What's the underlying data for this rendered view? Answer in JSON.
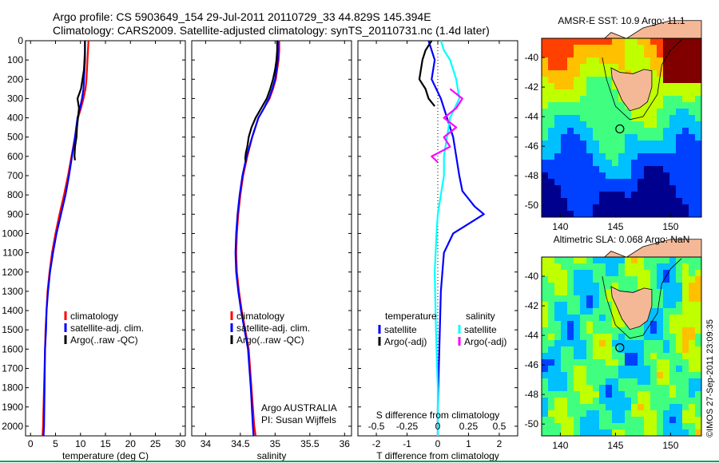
{
  "header": {
    "line1": "Argo profile: CS 5903649_154 29-Jul-2011 20110729_33 44.829S 145.394E",
    "line2": "Climatology: CARS2009. Satellite-adjusted climatology: synTS_20110731.nc (1.4d later)"
  },
  "colors": {
    "climatology": "#ff0000",
    "satellite": "#0000ff",
    "argo": "#000000",
    "salinity_satellite": "#00ffff",
    "salinity_argo": "#ff00ff",
    "land": "#f5b896"
  },
  "timestamp": "©IMOS 27-Sep-2011 23:09:35",
  "depth_ticks": [
    "0",
    "100",
    "200",
    "300",
    "400",
    "500",
    "600",
    "700",
    "800",
    "900",
    "1000",
    "1100",
    "1200",
    "1300",
    "1400",
    "1500",
    "1600",
    "1700",
    "1800",
    "1900",
    "2000"
  ],
  "chart_data": [
    {
      "type": "line",
      "id": "temperature",
      "xlabel": "temperature (deg C)",
      "xlim": [
        -1,
        31
      ],
      "ylim": [
        0,
        2050
      ],
      "y_inverted": true,
      "xticks": [
        "0",
        "5",
        "10",
        "15",
        "20",
        "25",
        "30"
      ],
      "xtick_values": [
        0,
        5,
        10,
        15,
        20,
        25,
        30
      ],
      "legend_position": "center-right",
      "legend": [
        "climatology",
        "satellite-adj. clim.",
        "Argo(..raw -QC)"
      ],
      "series": [
        {
          "name": "climatology",
          "color": "#ff0000",
          "x": [
            11.6,
            11.5,
            11.4,
            11.3,
            11.2,
            11.0,
            10.6,
            10.1,
            9.5,
            8.9,
            8.2,
            7.5,
            6.7,
            5.8,
            5.0,
            4.3,
            3.8,
            3.4,
            3.2,
            3.0,
            2.9,
            2.7,
            2.5,
            2.4
          ],
          "y": [
            0,
            50,
            100,
            150,
            200,
            250,
            300,
            350,
            400,
            500,
            600,
            700,
            800,
            900,
            1000,
            1100,
            1200,
            1300,
            1400,
            1500,
            1600,
            1800,
            2000,
            2050
          ]
        },
        {
          "name": "satellite-adj. clim.",
          "color": "#0000ff",
          "x": [
            10.9,
            10.9,
            10.9,
            10.8,
            10.7,
            10.6,
            10.3,
            9.9,
            9.4,
            8.9,
            8.3,
            7.7,
            7.0,
            6.1,
            5.2,
            4.5,
            3.9,
            3.5,
            3.2,
            3.1,
            2.9,
            2.8,
            2.7,
            2.6
          ],
          "y": [
            0,
            50,
            100,
            150,
            200,
            250,
            300,
            350,
            400,
            500,
            600,
            700,
            800,
            900,
            1000,
            1100,
            1200,
            1300,
            1400,
            1500,
            1600,
            1800,
            2000,
            2050
          ]
        },
        {
          "name": "Argo(..raw -QC)",
          "color": "#000000",
          "x": [
            10.9,
            10.9,
            10.8,
            10.7,
            10.4,
            10.1,
            9.4,
            9.7,
            9.5,
            9.3,
            9.2,
            8.9,
            8.8,
            8.9
          ],
          "y": [
            0,
            50,
            100,
            150,
            200,
            250,
            300,
            350,
            400,
            450,
            500,
            550,
            600,
            620
          ]
        }
      ]
    },
    {
      "type": "line",
      "id": "salinity",
      "xlabel": "salinity",
      "xlim": [
        33.8,
        36.1
      ],
      "ylim": [
        0,
        2050
      ],
      "y_inverted": true,
      "xticks": [
        "34",
        "34.5",
        "35",
        "35.5",
        "36"
      ],
      "xtick_values": [
        34,
        34.5,
        35,
        35.5,
        36
      ],
      "legend_position": "center-right",
      "legend": [
        "climatology",
        "satellite-adj. clim.",
        "Argo(..raw -QC)"
      ],
      "annotation": [
        "Argo AUSTRALIA",
        "PI: Susan Wijffels"
      ],
      "series": [
        {
          "name": "climatology",
          "color": "#ff0000",
          "x": [
            35.06,
            35.06,
            35.05,
            35.03,
            35.01,
            34.97,
            34.92,
            34.84,
            34.76,
            34.67,
            34.6,
            34.54,
            34.5,
            34.47,
            34.45,
            34.44,
            34.45,
            34.48,
            34.52,
            34.57,
            34.62,
            34.66,
            34.7,
            34.72
          ],
          "y": [
            0,
            50,
            100,
            150,
            200,
            250,
            300,
            350,
            400,
            500,
            600,
            700,
            800,
            900,
            1000,
            1100,
            1200,
            1300,
            1400,
            1500,
            1600,
            1800,
            2000,
            2050
          ]
        },
        {
          "name": "satellite-adj. clim.",
          "color": "#0000ff",
          "x": [
            35.04,
            35.04,
            35.04,
            35.02,
            35.0,
            34.96,
            34.91,
            34.84,
            34.76,
            34.67,
            34.59,
            34.53,
            34.49,
            34.46,
            34.44,
            34.43,
            34.44,
            34.47,
            34.51,
            34.56,
            34.61,
            34.65,
            34.68,
            34.69
          ],
          "y": [
            0,
            50,
            100,
            150,
            200,
            250,
            300,
            350,
            400,
            500,
            600,
            700,
            800,
            900,
            1000,
            1100,
            1200,
            1300,
            1400,
            1500,
            1600,
            1800,
            2000,
            2050
          ]
        },
        {
          "name": "Argo(..raw -QC)",
          "color": "#000000",
          "x": [
            35.03,
            35.03,
            35.02,
            35.0,
            34.97,
            34.93,
            34.88,
            34.8,
            34.72,
            34.66,
            34.62,
            34.6,
            34.58,
            34.57,
            34.58
          ],
          "y": [
            0,
            50,
            100,
            150,
            200,
            250,
            300,
            350,
            400,
            450,
            500,
            550,
            580,
            610,
            630
          ]
        }
      ]
    },
    {
      "type": "line",
      "id": "difference",
      "xlabel": "T difference from climatology",
      "xlabel_top": "S difference from climatology",
      "xlim": [
        -2.6,
        2.6
      ],
      "ylim": [
        0,
        2050
      ],
      "y_inverted": true,
      "xticks": [
        "-2",
        "-1",
        "0",
        "1",
        "2"
      ],
      "xtick_values": [
        -2,
        -1,
        0,
        1,
        2
      ],
      "sticks": [
        "-0.5",
        "-0.25",
        "0",
        "0.25",
        "0.5"
      ],
      "stick_values": [
        -0.5,
        -0.25,
        0,
        0.25,
        0.5
      ],
      "legend_position": "center",
      "legend_headers": [
        "temperature",
        "salinity"
      ],
      "legend_left": [
        "satellite",
        "Argo(-adj)"
      ],
      "legend_right": [
        "satellite",
        "Argo(-adj)"
      ],
      "series": [
        {
          "name": "satellite",
          "color": "#0000ff",
          "x": [
            -0.3,
            -0.2,
            -0.1,
            -0.2,
            0.1,
            0.3,
            0.5,
            0.6,
            0.7,
            0.8,
            1.0,
            1.2,
            1.5,
            1.0,
            0.5,
            0.2,
            0.1,
            0.05,
            0.0,
            0.0
          ],
          "y": [
            0,
            50,
            100,
            200,
            300,
            400,
            500,
            600,
            700,
            780,
            820,
            860,
            900,
            950,
            1000,
            1100,
            1300,
            1600,
            1900,
            2050
          ]
        },
        {
          "name": "Argo(-adj)",
          "color": "#000000",
          "x": [
            -0.2,
            -0.4,
            -0.5,
            -0.6,
            -0.4,
            -0.3,
            -0.1
          ],
          "y": [
            0,
            50,
            100,
            200,
            250,
            300,
            340
          ]
        },
        {
          "name": "satellite",
          "color": "#00ffff",
          "x": [
            0.05,
            0.1,
            0.2,
            0.3,
            0.35,
            0.2,
            0.15,
            0.1,
            0.1,
            0.05,
            0.0,
            -0.02,
            -0.05,
            -0.03,
            0.0,
            0.0
          ],
          "y": [
            0,
            50,
            100,
            200,
            300,
            400,
            500,
            600,
            700,
            800,
            900,
            1000,
            1200,
            1500,
            1800,
            2050
          ]
        },
        {
          "name": "Argo(-adj)",
          "color": "#ff00ff",
          "x": [
            0.2,
            0.4,
            0.3,
            0.1,
            0.3,
            0.1,
            0.2,
            -0.1,
            0.0
          ],
          "y": [
            250,
            300,
            350,
            400,
            450,
            500,
            550,
            600,
            630
          ]
        }
      ]
    },
    {
      "type": "heatmap",
      "id": "sst_map",
      "title": "AMSR-E SST: 10.9 Argo: 11.1",
      "xlim": [
        138.3,
        152.8
      ],
      "ylim": [
        -50.8,
        -38.7
      ],
      "xticks": [
        "140",
        "145",
        "150"
      ],
      "xtick_values": [
        140,
        145,
        150
      ],
      "yticks": [
        "-40",
        "-42",
        "-44",
        "-46",
        "-48",
        "-50"
      ],
      "ytick_values": [
        -40,
        -42,
        -44,
        -46,
        -48,
        -50
      ],
      "argo_position": [
        145.394,
        -44.829
      ],
      "colormap": [
        "#00008f",
        "#0040ff",
        "#00c0ff",
        "#40ff80",
        "#c0ff00",
        "#ffc000",
        "#ff4000",
        "#800000"
      ]
    },
    {
      "type": "heatmap",
      "id": "sla_map",
      "title": "Altimetric SLA: 0.068 Argo: NaN",
      "xlim": [
        138.3,
        152.8
      ],
      "ylim": [
        -50.8,
        -38.7
      ],
      "xticks": [
        "140",
        "145",
        "150"
      ],
      "xtick_values": [
        140,
        145,
        150
      ],
      "yticks": [
        "-40",
        "-42",
        "-44",
        "-46",
        "-48",
        "-50"
      ],
      "ytick_values": [
        -40,
        -42,
        -44,
        -46,
        -48,
        -50
      ],
      "argo_position": [
        145.394,
        -44.829
      ],
      "colormap": [
        "#00008f",
        "#0040ff",
        "#00c0ff",
        "#40ff80",
        "#c0ff00",
        "#ffc000",
        "#ff4000",
        "#800000"
      ]
    }
  ]
}
